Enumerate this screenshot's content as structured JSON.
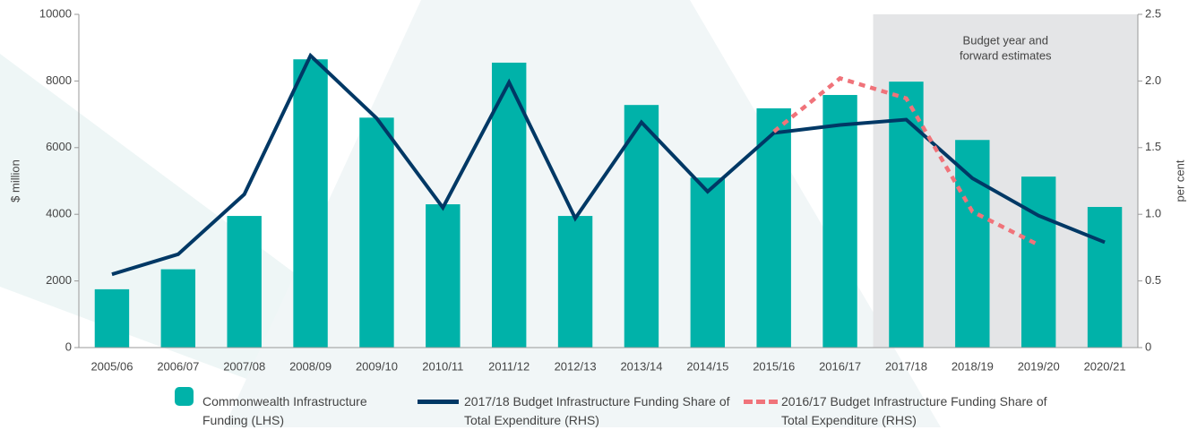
{
  "chart_data": {
    "type": "bar",
    "categories": [
      "2005/06",
      "2006/07",
      "2007/08",
      "2008/09",
      "2009/10",
      "2010/11",
      "2011/12",
      "2012/13",
      "2013/14",
      "2014/15",
      "2015/16",
      "2016/17",
      "2017/18",
      "2018/19",
      "2019/20",
      "2020/21"
    ],
    "series": [
      {
        "name": "Commonwealth Infrastructure Funding (LHS)",
        "type": "bar",
        "color": "#00b2a9",
        "values": [
          1750,
          2350,
          3950,
          8650,
          6900,
          4300,
          8550,
          3950,
          7280,
          5100,
          7180,
          7580,
          7980,
          6230,
          5130,
          4220
        ]
      },
      {
        "name": "2017/18 Budget Infrastructure Funding Share of Total Expenditure (RHS)",
        "type": "line",
        "axis": "y2",
        "color": "#003865",
        "values": [
          0.55,
          0.7,
          1.15,
          2.19,
          1.72,
          1.05,
          1.99,
          0.97,
          1.69,
          1.17,
          1.61,
          1.67,
          1.71,
          1.27,
          0.99,
          0.79
        ]
      },
      {
        "name": "2016/17 Budget Infrastructure Funding Share of Total Expenditure (RHS)",
        "type": "line",
        "axis": "y2",
        "color": "#f0737a",
        "dashed": true,
        "values": [
          null,
          null,
          null,
          null,
          null,
          null,
          null,
          null,
          null,
          null,
          1.62,
          2.02,
          1.87,
          1.02,
          0.77,
          null
        ]
      }
    ],
    "ylabel": "$ million",
    "y2label": "per cent",
    "ylim": [
      0,
      10000
    ],
    "yticks": [
      0,
      2000,
      4000,
      6000,
      8000,
      10000
    ],
    "y2lim": [
      0,
      2.5
    ],
    "y2ticks": [
      0,
      0.5,
      {
        "value": 1,
        "label": "1.0"
      },
      1.5,
      {
        "value": 2,
        "label": "2.0"
      },
      2.5
    ],
    "annotation": [
      "Budget year and",
      "forward estimates"
    ],
    "grid": false
  }
}
